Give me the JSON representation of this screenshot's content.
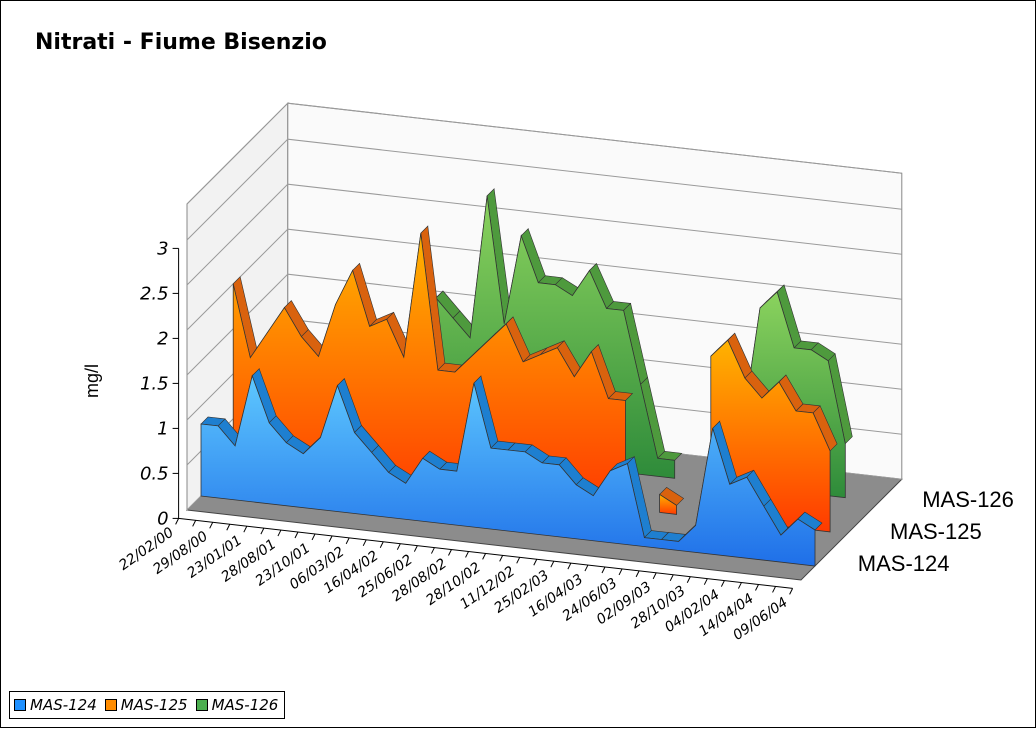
{
  "chart_data": {
    "type": "area",
    "title": "Nitrati - Fiume Bisenzio",
    "ylabel": "mg/l",
    "ylim": [
      0,
      3
    ],
    "y_ticks": [
      "0",
      "0.5",
      "1",
      "1.5",
      "2",
      "2.5",
      "3"
    ],
    "x_tick_labels": [
      "22/02/00",
      "29/08/00",
      "23/01/01",
      "28/08/01",
      "23/10/01",
      "06/03/02",
      "16/04/02",
      "25/06/02",
      "28/08/02",
      "28/10/02",
      "11/12/02",
      "25/02/03",
      "16/04/03",
      "24/06/03",
      "02/09/03",
      "28/10/03",
      "04/02/04",
      "14/04/04",
      "09/06/04"
    ],
    "grid": true,
    "legend_position": "bottom-left",
    "depth_labels": [
      "MAS-124",
      "MAS-125",
      "MAS-126"
    ],
    "series": [
      {
        "name": "MAS-124",
        "color": "#1e90ff",
        "values": [
          0.8,
          0.8,
          0.6,
          1.4,
          0.9,
          0.7,
          0.6,
          0.8,
          1.4,
          0.9,
          0.7,
          0.5,
          0.4,
          0.7,
          0.6,
          0.6,
          1.6,
          0.9,
          0.9,
          0.9,
          0.8,
          0.8,
          0.6,
          0.5,
          0.8,
          0.9,
          0.1,
          0.1,
          0.1,
          0.3,
          1.4,
          0.8,
          0.9,
          0.6,
          0.3,
          0.5,
          0.4
        ]
      },
      {
        "name": "MAS-125",
        "color": "#ff8c00",
        "values": [
          2.0,
          1.2,
          1.5,
          1.8,
          1.5,
          1.3,
          1.9,
          2.3,
          1.7,
          1.8,
          1.4,
          2.8,
          1.3,
          1.3,
          1.5,
          1.7,
          1.9,
          1.5,
          1.6,
          1.7,
          1.4,
          1.7,
          1.2,
          1.2,
          null,
          0.2,
          0.1,
          null,
          1.8,
          2.0,
          1.6,
          1.4,
          1.6,
          1.3,
          1.3,
          0.9,
          null
        ]
      },
      {
        "name": "MAS-126",
        "color": "#4caf50",
        "values": [
          null,
          null,
          null,
          null,
          null,
          null,
          null,
          null,
          null,
          1.5,
          1.7,
          1.5,
          1.3,
          2.9,
          1.5,
          2.5,
          2.0,
          2.0,
          1.9,
          2.2,
          1.8,
          1.8,
          1.0,
          0.2,
          0.2,
          null,
          null,
          0.7,
          0.7,
          2.0,
          2.2,
          1.6,
          1.6,
          1.5,
          0.6,
          null,
          null
        ]
      }
    ]
  }
}
